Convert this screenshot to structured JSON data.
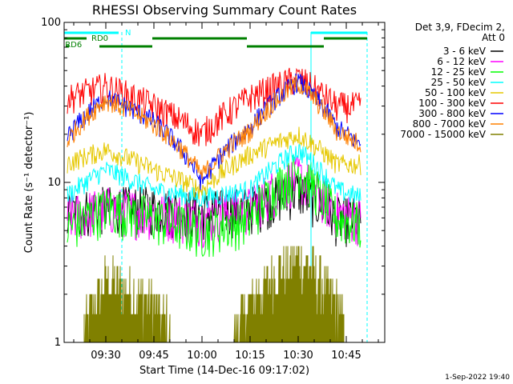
{
  "window": {
    "title": "RHESSI Observing Summary Count Rates"
  },
  "chart_data": {
    "type": "line",
    "title": "RHESSI Observing Summary Count Rates",
    "xlabel": "Start Time (14-Dec-16 09:17:02)",
    "ylabel": "Count Rate (s⁻¹ detector⁻¹)",
    "yscale": "log",
    "ylim": [
      1,
      100
    ],
    "xlim_minutes_from_0917": [
      0,
      100
    ],
    "yticks": [
      "1",
      "10",
      "100"
    ],
    "xticks": [
      {
        "label": "09:30",
        "t": 13
      },
      {
        "label": "09:45",
        "t": 28
      },
      {
        "label": "10:00",
        "t": 43
      },
      {
        "label": "10:15",
        "t": 58
      },
      {
        "label": "10:30",
        "t": 73
      },
      {
        "label": "10:45",
        "t": 88
      }
    ],
    "legend": {
      "header": [
        "Det 3,9, FDecim 2,",
        "Att 0"
      ],
      "placement": "right"
    },
    "series": [
      {
        "name": "3 - 6 keV",
        "color": "#000000",
        "x": [
          0,
          13,
          28,
          43,
          58,
          73,
          85,
          93
        ],
        "y": [
          6.5,
          7,
          7,
          6.5,
          7,
          9,
          6,
          6
        ]
      },
      {
        "name": "6 - 12 keV",
        "color": "#ff00ff",
        "x": [
          0,
          13,
          28,
          43,
          58,
          73,
          85,
          93
        ],
        "y": [
          6,
          7,
          6.5,
          6,
          7,
          11,
          6.5,
          6
        ]
      },
      {
        "name": "12 - 25 keV",
        "color": "#00ff00",
        "x": [
          0,
          13,
          28,
          43,
          58,
          73,
          85,
          93
        ],
        "y": [
          5,
          7,
          6,
          5,
          6,
          12,
          6,
          5.5
        ]
      },
      {
        "name": "25 - 50 keV",
        "color": "#00ffff",
        "x": [
          0,
          13,
          28,
          43,
          58,
          73,
          85,
          93
        ],
        "y": [
          8,
          12,
          9,
          8,
          9,
          16,
          9,
          8
        ]
      },
      {
        "name": "50 - 100 keV",
        "color": "#e6c800",
        "x": [
          0,
          13,
          28,
          43,
          58,
          73,
          85,
          93
        ],
        "y": [
          13,
          16,
          12,
          9,
          15,
          20,
          13,
          13
        ]
      },
      {
        "name": "100 - 300 keV",
        "color": "#ff0000",
        "x": [
          0,
          13,
          28,
          43,
          58,
          73,
          85,
          93
        ],
        "y": [
          33,
          40,
          30,
          20,
          34,
          45,
          30,
          30
        ]
      },
      {
        "name": "300 - 800 keV",
        "color": "#0000ff",
        "x": [
          0,
          13,
          28,
          43,
          58,
          73,
          85,
          93
        ],
        "y": [
          18,
          34,
          24,
          10,
          22,
          43,
          22,
          17
        ]
      },
      {
        "name": "800 - 7000 keV",
        "color": "#ff8000",
        "x": [
          0,
          13,
          28,
          43,
          58,
          73,
          85,
          93
        ],
        "y": [
          17,
          33,
          23,
          11,
          21,
          42,
          21,
          17
        ]
      },
      {
        "name": "7000 - 15000 keV",
        "color": "#808000",
        "x": [
          0,
          13,
          28,
          43,
          58,
          73,
          85,
          93
        ],
        "y": [
          0,
          2.5,
          1.8,
          0,
          1.8,
          3.5,
          1.8,
          0
        ]
      }
    ],
    "annotations": {
      "top_labels": [
        "N",
        "RD0",
        "RD6"
      ],
      "footer_date": "1-Sep-2022 19:40"
    }
  }
}
